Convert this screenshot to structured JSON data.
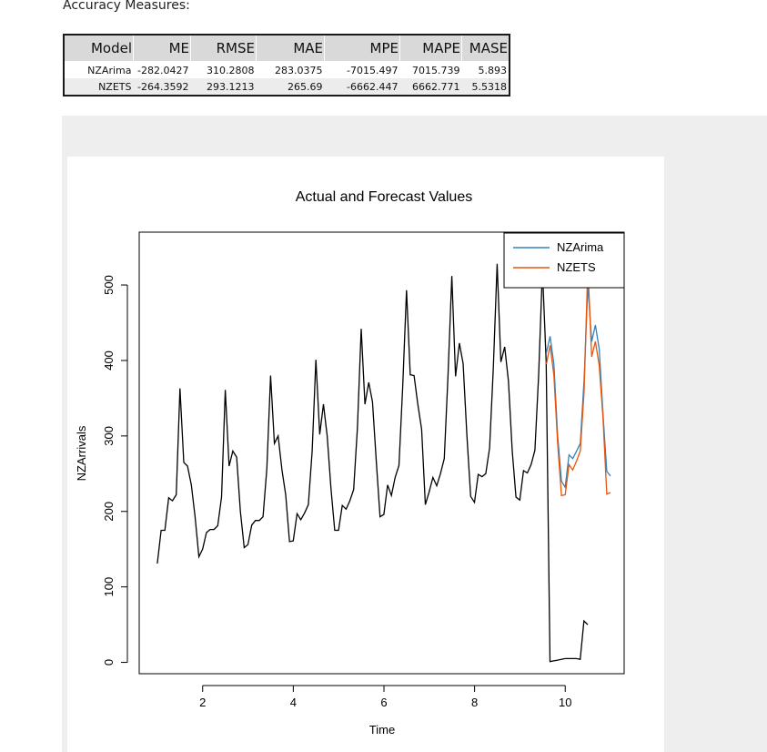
{
  "heading": "Accuracy Measures:",
  "table": {
    "columns": [
      "Model",
      "ME",
      "RMSE",
      "MAE",
      "MPE",
      "MAPE",
      "MASE"
    ],
    "rows": [
      [
        "NZArima",
        "-282.0427",
        "310.2808",
        "283.0375",
        "-7015.497",
        "7015.739",
        "5.893"
      ],
      [
        "NZETS",
        "-264.3592",
        "293.1213",
        "265.69",
        "-6662.447",
        "6662.771",
        "5.5318"
      ]
    ]
  },
  "colors": {
    "actual": "#000000",
    "NZArima": "#3182bd",
    "NZETS": "#e6550d",
    "panel_bg": "#eeeeee"
  },
  "chart_data": {
    "type": "line",
    "title": "Actual and Forecast Values",
    "xlabel": "Time",
    "ylabel": "NZArrivals",
    "xlim": [
      0.6,
      11.3
    ],
    "ylim": [
      -15,
      570
    ],
    "xticks": [
      2,
      4,
      6,
      8,
      10
    ],
    "yticks": [
      0,
      100,
      200,
      300,
      400,
      500
    ],
    "grid": false,
    "legend": {
      "position": "top-right",
      "entries": [
        "NZArima",
        "NZETS"
      ]
    },
    "series": [
      {
        "start": 1,
        "step": 0.0833,
        "values": [
          131,
          175,
          175,
          218,
          214,
          222,
          363,
          265,
          260,
          235,
          193,
          140,
          150,
          172,
          176,
          176,
          181,
          219,
          361,
          260,
          280,
          272,
          200,
          152,
          156,
          182,
          188,
          188,
          193,
          257,
          380,
          290,
          300,
          255,
          222,
          160,
          161,
          197,
          189,
          198,
          209,
          280,
          401,
          302,
          342,
          300,
          230,
          175,
          175,
          208,
          203,
          214,
          229,
          310,
          442,
          342,
          371,
          345,
          266,
          193,
          196,
          235,
          221,
          245,
          261,
          365,
          493,
          381,
          380,
          342,
          309,
          209,
          226,
          245,
          234,
          250,
          270,
          380,
          512,
          379,
          423,
          396,
          300,
          220,
          212,
          249,
          246,
          250,
          284,
          390,
          528,
          398,
          418,
          373,
          280,
          219,
          215,
          254,
          251,
          262,
          281,
          380,
          520,
          398,
          1,
          2,
          3,
          4,
          5,
          5,
          5,
          5,
          4,
          55,
          50
        ]
      },
      {
        "name": "NZArima",
        "start": 9.5833,
        "step": 0.0833,
        "values": [
          410,
          432,
          395,
          300,
          240,
          232,
          275,
          270,
          280,
          290,
          375,
          500,
          425,
          447,
          415,
          330,
          253,
          247
        ]
      },
      {
        "name": "NZETS",
        "start": 9.5833,
        "step": 0.0833,
        "values": [
          395,
          420,
          380,
          290,
          221,
          222,
          262,
          255,
          267,
          280,
          360,
          525,
          405,
          425,
          393,
          325,
          223,
          225
        ]
      }
    ]
  }
}
